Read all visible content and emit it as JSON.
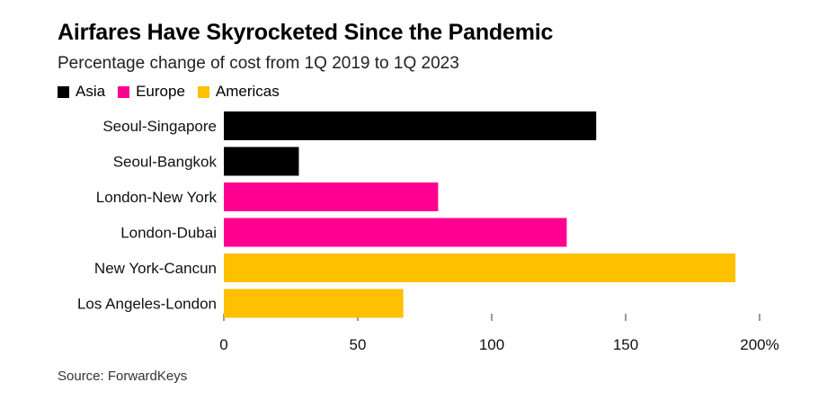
{
  "chart_data": {
    "type": "bar",
    "orientation": "horizontal",
    "title": "Airfares Have Skyrocketed Since the Pandemic",
    "subtitle": "Percentage change of cost from 1Q 2019 to 1Q 2023",
    "legend": [
      {
        "name": "Asia",
        "color": "#000000"
      },
      {
        "name": "Europe",
        "color": "#ff0090"
      },
      {
        "name": "Americas",
        "color": "#ffc000"
      }
    ],
    "categories": [
      "Seoul-Singapore",
      "Seoul-Bangkok",
      "London-New York",
      "London-Dubai",
      "New York-Cancun",
      "Los Angeles-London"
    ],
    "values": [
      139,
      28,
      80,
      128,
      191,
      67
    ],
    "groups": [
      "Asia",
      "Asia",
      "Europe",
      "Europe",
      "Americas",
      "Americas"
    ],
    "xlim": [
      0,
      200
    ],
    "xticks": [
      0,
      50,
      100,
      150,
      200
    ],
    "xtick_labels": [
      "0",
      "50",
      "100",
      "150",
      "200%"
    ],
    "source": "Source: ForwardKeys"
  }
}
